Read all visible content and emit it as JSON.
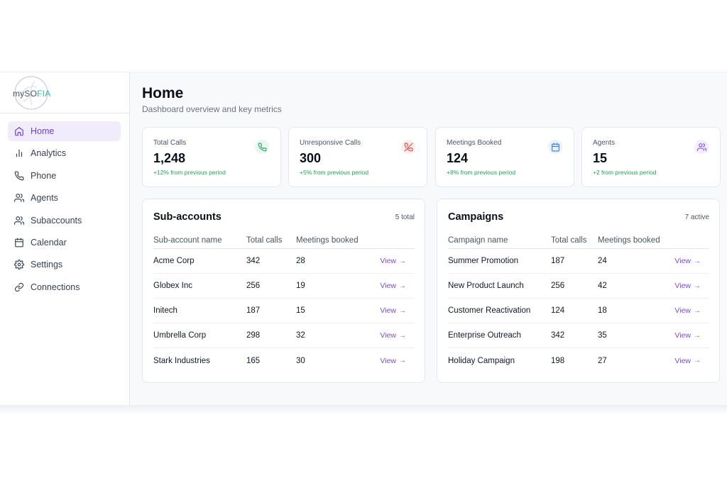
{
  "brand": {
    "logo_prefix": "myS",
    "logo_o": "O",
    "logo_accent": "FIA"
  },
  "sidebar": {
    "items": [
      {
        "label": "Home",
        "icon": "home-icon",
        "active": true
      },
      {
        "label": "Analytics",
        "icon": "bar-chart-icon",
        "active": false
      },
      {
        "label": "Phone",
        "icon": "phone-icon",
        "active": false
      },
      {
        "label": "Agents",
        "icon": "users-icon",
        "active": false
      },
      {
        "label": "Subaccounts",
        "icon": "users-icon",
        "active": false
      },
      {
        "label": "Calendar",
        "icon": "calendar-icon",
        "active": false
      },
      {
        "label": "Settings",
        "icon": "gear-icon",
        "active": false
      },
      {
        "label": "Connections",
        "icon": "link-icon",
        "active": false
      }
    ]
  },
  "header": {
    "title": "Home",
    "subtitle": "Dashboard overview and key metrics"
  },
  "metrics": [
    {
      "label": "Total Calls",
      "value": "1,248",
      "change": "+12% from previous period",
      "icon": "phone-icon",
      "icon_color": "#22a45a",
      "icon_bg": "#eaf7ef"
    },
    {
      "label": "Unresponsive Calls",
      "value": "300",
      "change": "+5% from previous period",
      "icon": "phone-off-icon",
      "icon_color": "#e0443e",
      "icon_bg": "#fdeeee"
    },
    {
      "label": "Meetings Booked",
      "value": "124",
      "change": "+8% from previous period",
      "icon": "calendar-icon",
      "icon_color": "#3b7ddd",
      "icon_bg": "#eaf1fc"
    },
    {
      "label": "Agents",
      "value": "15",
      "change": "+2 from previous period",
      "icon": "users-icon",
      "icon_color": "#7c4ad6",
      "icon_bg": "#f3eefc"
    }
  ],
  "subaccounts": {
    "title": "Sub-accounts",
    "count": "5 total",
    "columns": [
      "Sub-account name",
      "Total calls",
      "Meetings booked"
    ],
    "rows": [
      {
        "name": "Acme Corp",
        "calls": "342",
        "meetings": "28"
      },
      {
        "name": "Globex Inc",
        "calls": "256",
        "meetings": "19"
      },
      {
        "name": "Initech",
        "calls": "187",
        "meetings": "15"
      },
      {
        "name": "Umbrella Corp",
        "calls": "298",
        "meetings": "32"
      },
      {
        "name": "Stark Industries",
        "calls": "165",
        "meetings": "30"
      }
    ]
  },
  "campaigns": {
    "title": "Campaigns",
    "count": "7 active",
    "columns": [
      "Campaign name",
      "Total calls",
      "Meetings booked"
    ],
    "rows": [
      {
        "name": "Summer Promotion",
        "calls": "187",
        "meetings": "24"
      },
      {
        "name": "New Product Launch",
        "calls": "256",
        "meetings": "42"
      },
      {
        "name": "Customer Reactivation",
        "calls": "124",
        "meetings": "18"
      },
      {
        "name": "Enterprise Outreach",
        "calls": "342",
        "meetings": "35"
      },
      {
        "name": "Holiday Campaign",
        "calls": "198",
        "meetings": "27"
      }
    ]
  },
  "view_label": "View",
  "view_arrow": "→",
  "colors": {
    "accent": "#7c4ad6",
    "positive": "#22a45a",
    "brand_teal": "#34b4ad"
  }
}
